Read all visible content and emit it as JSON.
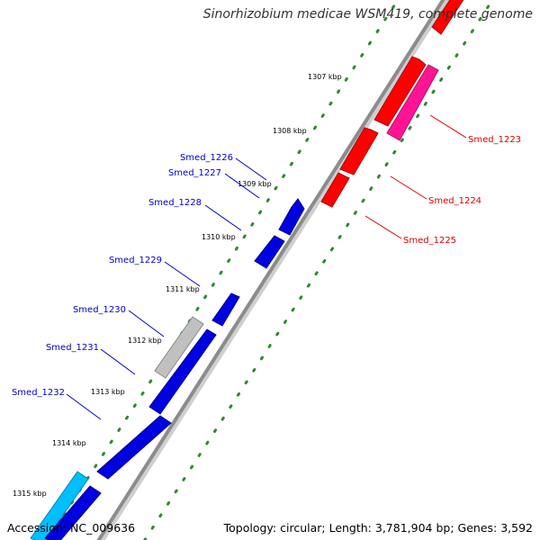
{
  "title": "Sinorhizobium medicae WSM419, complete genome",
  "footer": {
    "accession": "Accession: NC_009636",
    "summary": "Topology: circular; Length: 3,781,904 bp; Genes: 3,592"
  },
  "colors": {
    "backbone": "#8c8c8c",
    "tick_dots": "#2e8b2e",
    "forward_gene": "#0000e0",
    "reverse_gene": "#ff0000",
    "reverse_gene_alt": "#ff1493",
    "grey_gene": "#c0c0c0",
    "cyan_gene": "#00bfff",
    "forward_label": "#0000cc",
    "reverse_label": "#dd0000"
  },
  "ticks": [
    "1307 kbp",
    "1308 kbp",
    "1309 kbp",
    "1310 kbp",
    "1311 kbp",
    "1312 kbp",
    "1313 kbp",
    "1314 kbp",
    "1315 kbp"
  ],
  "forward_labels": [
    "Smed_1226",
    "Smed_1227",
    "Smed_1228",
    "Smed_1229",
    "Smed_1230",
    "Smed_1231",
    "Smed_1232"
  ],
  "reverse_labels": [
    "Smed_1223",
    "Smed_1224",
    "Smed_1225"
  ]
}
